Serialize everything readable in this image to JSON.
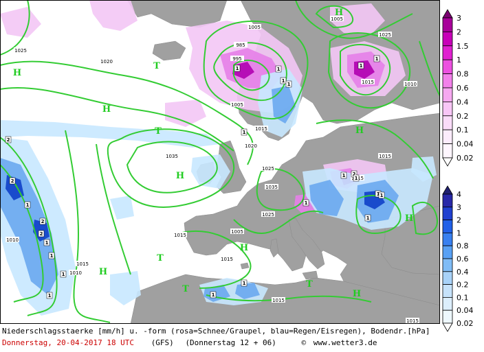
{
  "map": {
    "pressure_centers": [
      {
        "type": "H",
        "label": "H"
      },
      {
        "type": "H",
        "label": "H"
      },
      {
        "type": "H",
        "label": "H"
      },
      {
        "type": "H",
        "label": "H"
      },
      {
        "type": "H",
        "label": "H"
      },
      {
        "type": "H",
        "label": "H"
      },
      {
        "type": "H",
        "label": "H"
      },
      {
        "type": "H",
        "label": "H"
      },
      {
        "type": "H",
        "label": "H"
      },
      {
        "type": "T",
        "label": "T"
      },
      {
        "type": "T",
        "label": "T"
      },
      {
        "type": "T",
        "label": "T"
      },
      {
        "type": "T",
        "label": "T"
      },
      {
        "type": "T",
        "label": "T"
      }
    ],
    "isobar_labels": [
      "1025",
      "1020",
      "1005",
      "995",
      "985",
      "1005",
      "1015",
      "1020",
      "1035",
      "1015",
      "1015",
      "1010",
      "1035",
      "1025",
      "1025",
      "1015",
      "1015",
      "1010",
      "1005",
      "1015",
      "1010",
      "1015",
      "1005",
      "1025",
      "1005",
      "1015",
      "1015"
    ],
    "cell_numbers": [
      "1",
      "1",
      "1",
      "1",
      "1",
      "2",
      "2",
      "2",
      "2",
      "1",
      "1",
      "1",
      "1",
      "1",
      "1",
      "1",
      "1",
      "2",
      "1",
      "1",
      "1",
      "1",
      "1",
      "1",
      "1"
    ],
    "colors": {
      "sea": "#ffffff",
      "land": "#a0a0a0",
      "isobar": "#33cc33",
      "snow_light": "#f3c6f5",
      "snow_mid": "#e680e8",
      "snow_dark": "#b000b0",
      "rain_light": "#c8e8ff",
      "rain_mid": "#6aa8f0",
      "rain_dark": "#1040c8"
    }
  },
  "legend_snow": {
    "ticks": [
      "3",
      "2",
      "1.5",
      "1",
      "0.8",
      "0.6",
      "0.4",
      "0.2",
      "0.1",
      "0.04",
      "0.02"
    ],
    "colors": [
      "#7a0070",
      "#a8009a",
      "#c800b8",
      "#e020d0",
      "#ec50e0",
      "#f280ea",
      "#f6a8f0",
      "#f8c6f6",
      "#fadcf9",
      "#fcecfc",
      "#fef6fe"
    ]
  },
  "legend_rain": {
    "ticks": [
      "4",
      "3",
      "2",
      "1",
      "0.8",
      "0.6",
      "0.4",
      "0.2",
      "0.1",
      "0.04",
      "0.02"
    ],
    "colors": [
      "#202070",
      "#2828a8",
      "#2040d0",
      "#2060e8",
      "#3880f0",
      "#58a0f4",
      "#80bcf6",
      "#a8d2f8",
      "#c6e2fa",
      "#dceefc",
      "#eef8fe"
    ]
  },
  "caption": {
    "line1": "Niederschlagsstaerke [mm/h] u. -form (rosa=Schnee/Graupel, blau=Regen/Eisregen), Bodendr.[hPa]",
    "date": "Donnerstag, 20-04-2017  18 UTC",
    "model": "(GFS)",
    "run": "(Donnerstag 12 + 06)",
    "copyright": "©",
    "site": "www.wetter3.de"
  }
}
